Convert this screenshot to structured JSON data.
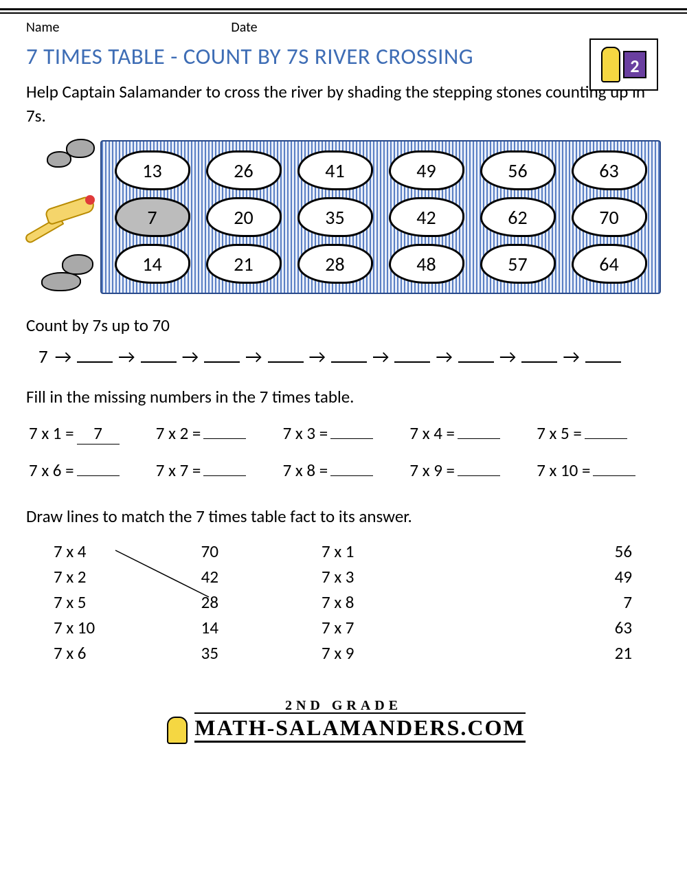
{
  "header": {
    "name_label": "Name",
    "date_label": "Date",
    "grade_badge": "2"
  },
  "title": "7 TIMES TABLE - COUNT BY 7S RIVER CROSSING",
  "instructions": "Help Captain Salamander to cross the river by shading the stepping stones counting up in 7s.",
  "river": {
    "background_stripe_colors": [
      "#5a7fc4",
      "#e8eef9"
    ],
    "border_color": "#2a4a8a",
    "stone_border_color": "#000000",
    "stone_fill": "#ffffff",
    "stone_shaded_fill": "#bcbcbc",
    "rows": [
      [
        {
          "v": "13",
          "shaded": false
        },
        {
          "v": "26",
          "shaded": false
        },
        {
          "v": "41",
          "shaded": false
        },
        {
          "v": "49",
          "shaded": false
        },
        {
          "v": "56",
          "shaded": false
        },
        {
          "v": "63",
          "shaded": false
        }
      ],
      [
        {
          "v": "7",
          "shaded": true
        },
        {
          "v": "20",
          "shaded": false
        },
        {
          "v": "35",
          "shaded": false
        },
        {
          "v": "42",
          "shaded": false
        },
        {
          "v": "62",
          "shaded": false
        },
        {
          "v": "70",
          "shaded": false
        }
      ],
      [
        {
          "v": "14",
          "shaded": false
        },
        {
          "v": "21",
          "shaded": false
        },
        {
          "v": "28",
          "shaded": false
        },
        {
          "v": "48",
          "shaded": false
        },
        {
          "v": "57",
          "shaded": false
        },
        {
          "v": "64",
          "shaded": false
        }
      ]
    ]
  },
  "count_section": {
    "label": "Count by 7s up to 70",
    "start": "7",
    "arrow": "→",
    "blanks": 9
  },
  "fill_section": {
    "label": "Fill in the missing numbers in the 7 times table.",
    "cells": [
      {
        "q": "7 x 1 =",
        "a": "7"
      },
      {
        "q": "7 x 2 =",
        "a": ""
      },
      {
        "q": "7 x 3 =",
        "a": ""
      },
      {
        "q": "7 x 4 =",
        "a": ""
      },
      {
        "q": "7 x 5 =",
        "a": ""
      },
      {
        "q": "7 x 6 =",
        "a": ""
      },
      {
        "q": "7 x 7 =",
        "a": ""
      },
      {
        "q": "7 x 8 =",
        "a": ""
      },
      {
        "q": "7 x 9 =",
        "a": ""
      },
      {
        "q": "7 x 10 =",
        "a": ""
      }
    ]
  },
  "match_section": {
    "label": "Draw lines to match the 7 times table fact to its answer.",
    "left_group": {
      "facts": [
        "7 x 4",
        "7 x 2",
        "7 x 5",
        "7 x 10",
        "7 x 6"
      ],
      "answers": [
        "70",
        "42",
        "28",
        "14",
        "35"
      ]
    },
    "right_group": {
      "facts": [
        "7 x 1",
        "7 x 3",
        "7 x 8",
        "7 x 7",
        "7 x 9"
      ],
      "answers": [
        "56",
        "49",
        "7",
        "63",
        "21"
      ]
    },
    "example_line": {
      "from_row": 0,
      "to_row": 2
    }
  },
  "footer": {
    "grade_text": "2ND GRADE",
    "brand_text": "ATH-SALAMANDERS.COM"
  },
  "colors": {
    "title": "#3e6db5",
    "text": "#000000",
    "salamander_body": "#f5d56b",
    "salamander_outline": "#b88a00",
    "logo_purple": "#6a3fa0"
  }
}
